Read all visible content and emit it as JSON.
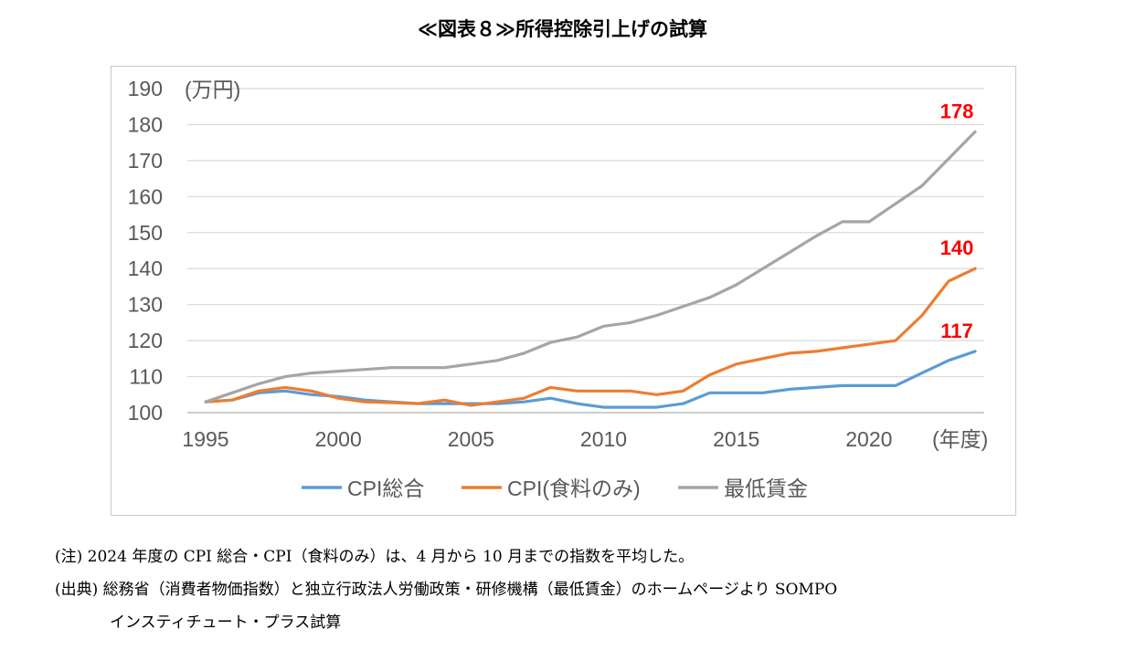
{
  "title": "≪図表８≫所得控除引上げの試算",
  "chart_data": {
    "type": "line",
    "unit_label": "(万円)",
    "x_unit_label": "(年度)",
    "xlim": [
      1995,
      2024
    ],
    "ylim": [
      100,
      190
    ],
    "y_ticks": [
      100,
      110,
      120,
      130,
      140,
      150,
      160,
      170,
      180,
      190
    ],
    "x_ticks": [
      1995,
      2000,
      2005,
      2010,
      2015,
      2020
    ],
    "grid": true,
    "legend_position": "bottom",
    "x": [
      1995,
      1996,
      1997,
      1998,
      1999,
      2000,
      2001,
      2002,
      2003,
      2004,
      2005,
      2006,
      2007,
      2008,
      2009,
      2010,
      2011,
      2012,
      2013,
      2014,
      2015,
      2016,
      2017,
      2018,
      2019,
      2020,
      2021,
      2022,
      2023,
      2024
    ],
    "series": [
      {
        "name": "CPI総合",
        "color": "#5b9bd5",
        "values": [
          103,
          103.5,
          105.5,
          106,
          105,
          104.5,
          103.5,
          103,
          102.5,
          102.5,
          102.5,
          102.5,
          103,
          104,
          102.5,
          101.5,
          101.5,
          101.5,
          102.5,
          105.5,
          105.5,
          105.5,
          106.5,
          107,
          107.5,
          107.5,
          107.5,
          111,
          114.5,
          117
        ]
      },
      {
        "name": "CPI(食料のみ)",
        "color": "#ed7d31",
        "values": [
          103,
          103.5,
          106,
          107,
          106,
          104,
          103,
          102.8,
          102.5,
          103.5,
          102,
          103,
          104,
          107,
          106,
          106,
          106,
          105,
          106,
          110.5,
          113.5,
          115,
          116.5,
          117,
          118,
          119,
          120,
          127,
          136.5,
          140
        ]
      },
      {
        "name": "最低賃金",
        "color": "#a5a5a5",
        "values": [
          103,
          105.5,
          108,
          110,
          111,
          111.5,
          112,
          112.5,
          112.5,
          112.5,
          113.5,
          114.5,
          116.5,
          119.5,
          121,
          124,
          125,
          127,
          129.5,
          132,
          135.5,
          140,
          144.5,
          149,
          153,
          153,
          158,
          163,
          170.5,
          178
        ]
      }
    ],
    "end_labels": [
      "117",
      "140",
      "178"
    ],
    "end_label_color": "#ff0000"
  },
  "notes": {
    "line1": "(注) 2024 年度の CPI 総合・CPI（食料のみ）は、4 月から 10 月までの指数を平均した。",
    "line2": "(出典) 総務省（消費者物価指数）と独立行政法人労働政策・研修機構（最低賃金）のホームページより SOMPO",
    "line3": "インスティチュート・プラス試算"
  }
}
